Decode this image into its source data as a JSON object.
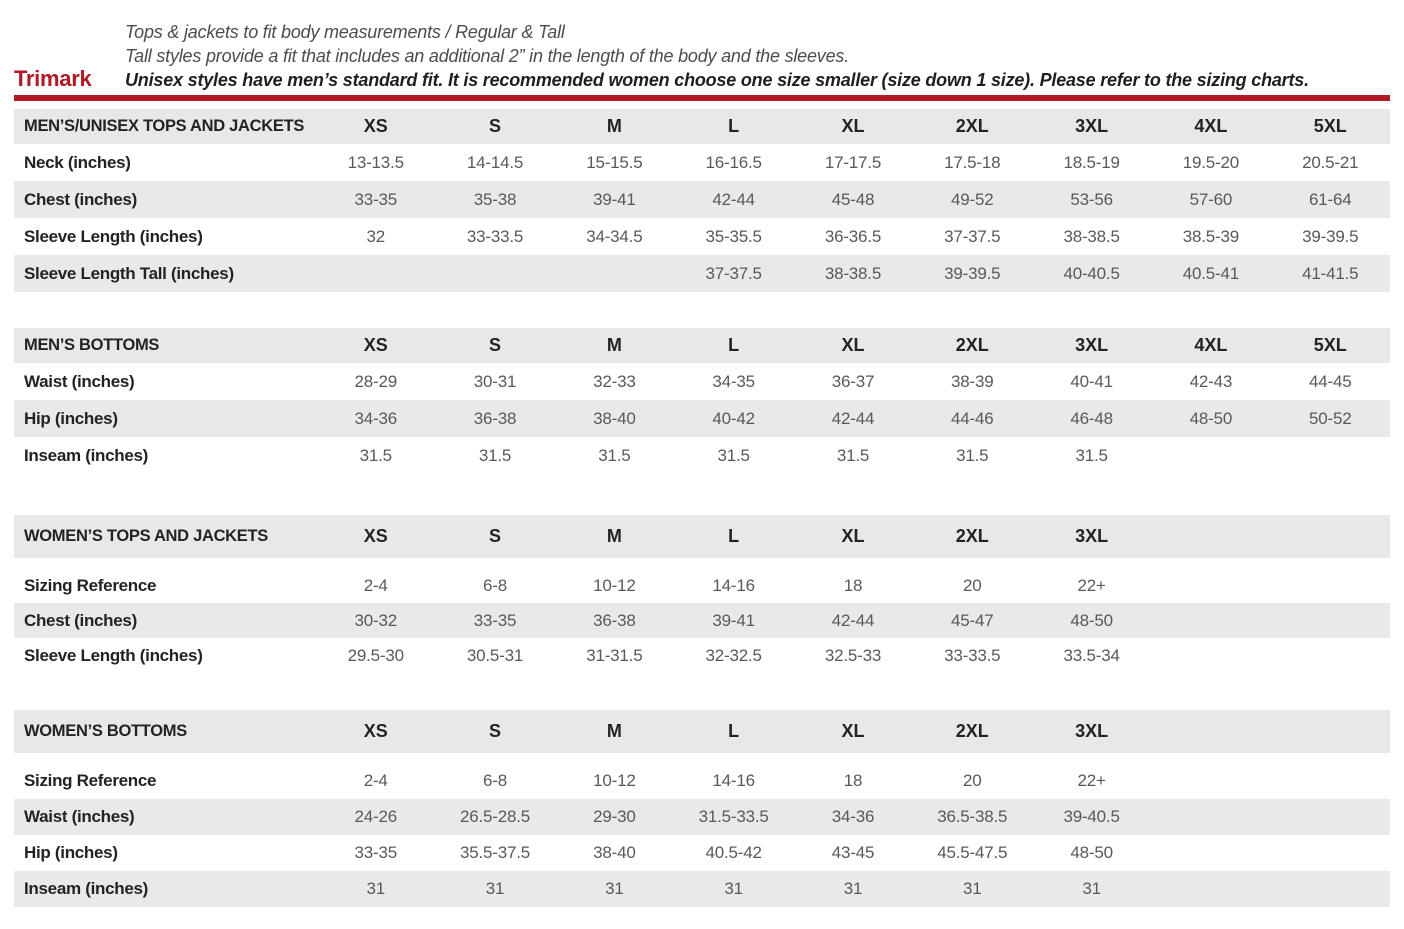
{
  "page": {
    "brand": "Trimark",
    "accent_color": "#b01823",
    "stripe_color": "#e9e9e9",
    "intro_lines": [
      "Tops & jackets to fit body measurements / Regular & Tall",
      "Tall styles provide a fit that includes an additional 2” in the length of the body and the sleeves.",
      "Unisex styles have men’s standard fit. It is recommended women choose one size smaller (size down 1 size).  Please refer to the sizing charts."
    ]
  },
  "tables": [
    {
      "title": "MEN’S/UNISEX TOPS AND JACKETS",
      "sizes": [
        "XS",
        "S",
        "M",
        "L",
        "XL",
        "2XL",
        "3XL",
        "4XL",
        "5XL"
      ],
      "rows": [
        {
          "label": "Neck (inches)",
          "values": [
            "13-13.5",
            "14-14.5",
            "15-15.5",
            "16-16.5",
            "17-17.5",
            "17.5-18",
            "18.5-19",
            "19.5-20",
            "20.5-21"
          ]
        },
        {
          "label": "Chest (inches)",
          "values": [
            "33-35",
            "35-38",
            "39-41",
            "42-44",
            "45-48",
            "49-52",
            "53-56",
            "57-60",
            "61-64"
          ]
        },
        {
          "label": "Sleeve Length (inches)",
          "values": [
            "32",
            "33-33.5",
            "34-34.5",
            "35-35.5",
            "36-36.5",
            "37-37.5",
            "38-38.5",
            "38.5-39",
            "39-39.5"
          ]
        },
        {
          "label": "Sleeve Length Tall (inches)",
          "values": [
            "",
            "",
            "",
            "37-37.5",
            "38-38.5",
            "39-39.5",
            "40-40.5",
            "40.5-41",
            "41-41.5"
          ]
        }
      ]
    },
    {
      "title": "MEN’S BOTTOMS",
      "sizes": [
        "XS",
        "S",
        "M",
        "L",
        "XL",
        "2XL",
        "3XL",
        "4XL",
        "5XL"
      ],
      "rows": [
        {
          "label": "Waist (inches)",
          "values": [
            "28-29",
            "30-31",
            "32-33",
            "34-35",
            "36-37",
            "38-39",
            "40-41",
            "42-43",
            "44-45"
          ]
        },
        {
          "label": "Hip (inches)",
          "values": [
            "34-36",
            "36-38",
            "38-40",
            "40-42",
            "42-44",
            "44-46",
            "46-48",
            "48-50",
            "50-52"
          ]
        },
        {
          "label": "Inseam (inches)",
          "values": [
            "31.5",
            "31.5",
            "31.5",
            "31.5",
            "31.5",
            "31.5",
            "31.5",
            "",
            ""
          ]
        }
      ]
    },
    {
      "title": "WOMEN’S TOPS AND JACKETS",
      "sizes": [
        "XS",
        "S",
        "M",
        "L",
        "XL",
        "2XL",
        "3XL",
        "",
        ""
      ],
      "rows": [
        {
          "label": "Sizing Reference",
          "values": [
            "2-4",
            "6-8",
            "10-12",
            "14-16",
            "18",
            "20",
            "22+",
            "",
            ""
          ]
        },
        {
          "label": "Chest (inches)",
          "values": [
            "30-32",
            "33-35",
            "36-38",
            "39-41",
            "42-44",
            "45-47",
            "48-50",
            "",
            ""
          ]
        },
        {
          "label": "Sleeve Length (inches)",
          "values": [
            "29.5-30",
            "30.5-31",
            "31-31.5",
            "32-32.5",
            "32.5-33",
            "33-33.5",
            "33.5-34",
            "",
            ""
          ]
        }
      ]
    },
    {
      "title": "WOMEN’S BOTTOMS",
      "sizes": [
        "XS",
        "S",
        "M",
        "L",
        "XL",
        "2XL",
        "3XL",
        "",
        ""
      ],
      "rows": [
        {
          "label": "Sizing Reference",
          "values": [
            "2-4",
            "6-8",
            "10-12",
            "14-16",
            "18",
            "20",
            "22+",
            "",
            ""
          ]
        },
        {
          "label": "Waist (inches)",
          "values": [
            "24-26",
            "26.5-28.5",
            "29-30",
            "31.5-33.5",
            "34-36",
            "36.5-38.5",
            "39-40.5",
            "",
            ""
          ]
        },
        {
          "label": "Hip (inches)",
          "values": [
            "33-35",
            "35.5-37.5",
            "38-40",
            "40.5-42",
            "43-45",
            "45.5-47.5",
            "48-50",
            "",
            ""
          ]
        },
        {
          "label": "Inseam (inches)",
          "values": [
            "31",
            "31",
            "31",
            "31",
            "31",
            "31",
            "31",
            "",
            ""
          ]
        }
      ]
    }
  ]
}
